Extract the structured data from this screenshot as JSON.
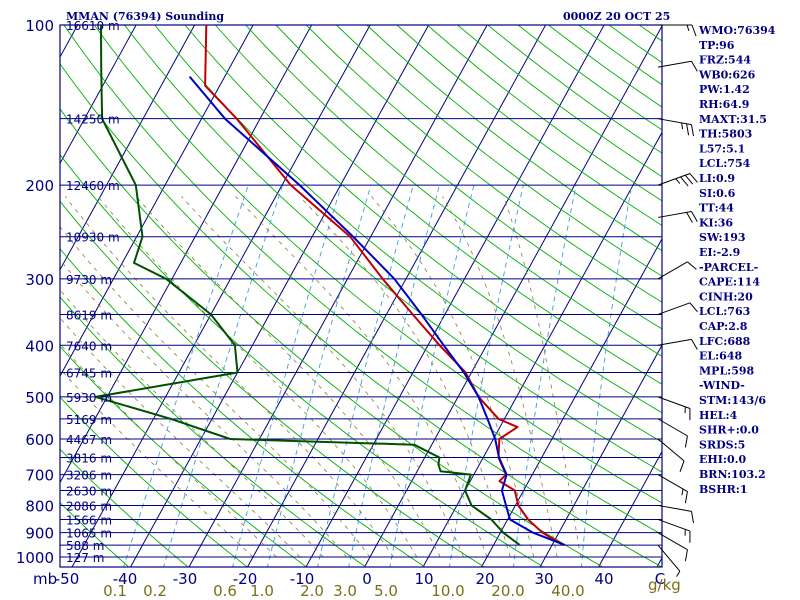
{
  "header": {
    "station": "MMAN (76394) Sounding",
    "time": "0000Z 20 OCT 25"
  },
  "units": {
    "pressure": "mb",
    "mixing_ratio": "g/kg"
  },
  "colors": {
    "frame": "#000080",
    "temperature": "#c00000",
    "dewpoint": "#005000",
    "parcel": "#0000c0",
    "dry_adiabat": "#00b000",
    "moist_adiabat": "#8a7d3a",
    "mixing_line": "#3aa0d8",
    "wind_barb": "#000000"
  },
  "pressure_levels": [
    {
      "p": 100,
      "height": "16610 m"
    },
    {
      "p": 150,
      "height": "14250 m"
    },
    {
      "p": 200,
      "height": "12460 m"
    },
    {
      "p": 250,
      "height": "10930 m"
    },
    {
      "p": 300,
      "height": "9730 m"
    },
    {
      "p": 350,
      "height": "8619 m"
    },
    {
      "p": 400,
      "height": "7640 m"
    },
    {
      "p": 450,
      "height": "6745 m"
    },
    {
      "p": 500,
      "height": "5930 m"
    },
    {
      "p": 550,
      "height": "5169 m"
    },
    {
      "p": 600,
      "height": "4467 m"
    },
    {
      "p": 650,
      "height": "3816 m"
    },
    {
      "p": 700,
      "height": "3206 m"
    },
    {
      "p": 750,
      "height": "2630 m"
    },
    {
      "p": 800,
      "height": "2086 m"
    },
    {
      "p": 850,
      "height": "1566 m"
    },
    {
      "p": 900,
      "height": "1065 m"
    },
    {
      "p": 950,
      "height": "588 m"
    },
    {
      "p": 1000,
      "height": "127 m"
    }
  ],
  "pressure_tick_labels": [
    "100",
    "200",
    "300",
    "400",
    "500",
    "600",
    "700",
    "800",
    "900",
    "1000"
  ],
  "temperature_ticks": [
    "-50",
    "-40",
    "-30",
    "-20",
    "-10",
    "0",
    "10",
    "20",
    "30",
    "40",
    "C"
  ],
  "mixing_ratio_ticks": [
    "0.1",
    "0.2",
    "0.6",
    "1.0",
    "2.0",
    "3.0",
    "5.0",
    "10.0",
    "20.0",
    "40.0"
  ],
  "indices": [
    "WMO:76394",
    "TP:96",
    "FRZ:544",
    "WB0:626",
    "PW:1.42",
    "RH:64.9",
    "MAXT:31.5",
    "TH:5803",
    "L57:5.1",
    "LCL:754",
    "LI:0.9",
    "SI:0.6",
    "TT:44",
    "KI:36",
    "SW:193",
    "EI:-2.9",
    "-PARCEL-",
    "CAPE:114",
    "CINH:20",
    "LCL:763",
    "CAP:2.8",
    "LFC:688",
    "EL:648",
    "MPL:598",
    "-WIND-",
    "STM:143/6",
    "HEL:4",
    "SHR+:0.0",
    "SRDS:5",
    "EHI:0.0",
    "BRN:103.2",
    "BSHR:1"
  ],
  "chart_data": {
    "type": "line",
    "title": "MMAN (76394) Sounding",
    "subtitle": "0000Z 20 OCT 25",
    "xlabel": "C",
    "ylabel": "mb",
    "x_range_at_bottom": [
      -50,
      50
    ],
    "y_range": [
      1000,
      100
    ],
    "y_scale": "log",
    "skew": "skew-T log-P",
    "grid": true,
    "series": [
      {
        "name": "Temperature",
        "points": [
          {
            "p": 950,
            "t": 32
          },
          {
            "p": 900,
            "t": 27.2
          },
          {
            "p": 850,
            "t": 23.5
          },
          {
            "p": 800,
            "t": 20.5
          },
          {
            "p": 750,
            "t": 18.5
          },
          {
            "p": 720,
            "t": 15.0
          },
          {
            "p": 700,
            "t": 15.5
          },
          {
            "p": 650,
            "t": 12.6
          },
          {
            "p": 600,
            "t": 11.0
          },
          {
            "p": 570,
            "t": 13.0
          },
          {
            "p": 550,
            "t": 9.0
          },
          {
            "p": 500,
            "t": 3.5
          },
          {
            "p": 450,
            "t": -1.0
          },
          {
            "p": 400,
            "t": -8.0
          },
          {
            "p": 350,
            "t": -15.5
          },
          {
            "p": 300,
            "t": -24.0
          },
          {
            "p": 250,
            "t": -33.5
          },
          {
            "p": 200,
            "t": -48.5
          },
          {
            "p": 150,
            "t": -64.0
          },
          {
            "p": 130,
            "t": -72.5
          },
          {
            "p": 100,
            "t": -78.0
          }
        ]
      },
      {
        "name": "Dewpoint",
        "points": [
          {
            "p": 950,
            "t": 24.5
          },
          {
            "p": 900,
            "t": 20.5
          },
          {
            "p": 850,
            "t": 17.2
          },
          {
            "p": 800,
            "t": 12.5
          },
          {
            "p": 750,
            "t": 10.0
          },
          {
            "p": 700,
            "t": 9.5
          },
          {
            "p": 690,
            "t": 4.0
          },
          {
            "p": 670,
            "t": 3.0
          },
          {
            "p": 650,
            "t": 2.5
          },
          {
            "p": 615,
            "t": -3.0
          },
          {
            "p": 600,
            "t": -35.0
          },
          {
            "p": 550,
            "t": -47.0
          },
          {
            "p": 500,
            "t": -62.0
          },
          {
            "p": 450,
            "t": -40.0
          },
          {
            "p": 400,
            "t": -43.0
          },
          {
            "p": 350,
            "t": -50.0
          },
          {
            "p": 300,
            "t": -61.0
          },
          {
            "p": 280,
            "t": -68.0
          },
          {
            "p": 250,
            "t": -69.0
          },
          {
            "p": 200,
            "t": -75.0
          },
          {
            "p": 150,
            "t": -87.0
          },
          {
            "p": 120,
            "t": -92.0
          },
          {
            "p": 100,
            "t": -96.0
          }
        ]
      },
      {
        "name": "Parcel",
        "points": [
          {
            "p": 950,
            "t": 32.2
          },
          {
            "p": 900,
            "t": 25.6
          },
          {
            "p": 850,
            "t": 20.4
          },
          {
            "p": 800,
            "t": 18.4
          },
          {
            "p": 750,
            "t": 16.3
          },
          {
            "p": 700,
            "t": 15.6
          },
          {
            "p": 650,
            "t": 12.7
          },
          {
            "p": 600,
            "t": 10.3
          },
          {
            "p": 550,
            "t": 7.1
          },
          {
            "p": 500,
            "t": 3.5
          },
          {
            "p": 450,
            "t": -1.3
          },
          {
            "p": 400,
            "t": -7.3
          },
          {
            "p": 350,
            "t": -14.0
          },
          {
            "p": 300,
            "t": -22.0
          },
          {
            "p": 250,
            "t": -33.0
          },
          {
            "p": 200,
            "t": -47.0
          },
          {
            "p": 150,
            "t": -66.0
          },
          {
            "p": 125,
            "t": -76.0
          }
        ]
      }
    ],
    "wind_barbs": [
      {
        "p": 100,
        "dir": 90,
        "spd": 15
      },
      {
        "p": 120,
        "dir": 80,
        "spd": 10
      },
      {
        "p": 150,
        "dir": 100,
        "spd": 25
      },
      {
        "p": 200,
        "dir": 70,
        "spd": 35
      },
      {
        "p": 230,
        "dir": 80,
        "spd": 20
      },
      {
        "p": 300,
        "dir": 60,
        "spd": 10
      },
      {
        "p": 350,
        "dir": 70,
        "spd": 10
      },
      {
        "p": 400,
        "dir": 80,
        "spd": 10
      },
      {
        "p": 500,
        "dir": 110,
        "spd": 15
      },
      {
        "p": 550,
        "dir": 120,
        "spd": 10
      },
      {
        "p": 600,
        "dir": 130,
        "spd": 10
      },
      {
        "p": 700,
        "dir": 120,
        "spd": 15
      },
      {
        "p": 800,
        "dir": 100,
        "spd": 10
      },
      {
        "p": 850,
        "dir": 110,
        "spd": 15
      },
      {
        "p": 900,
        "dir": 120,
        "spd": 10
      },
      {
        "p": 950,
        "dir": 140,
        "spd": 5
      }
    ]
  }
}
